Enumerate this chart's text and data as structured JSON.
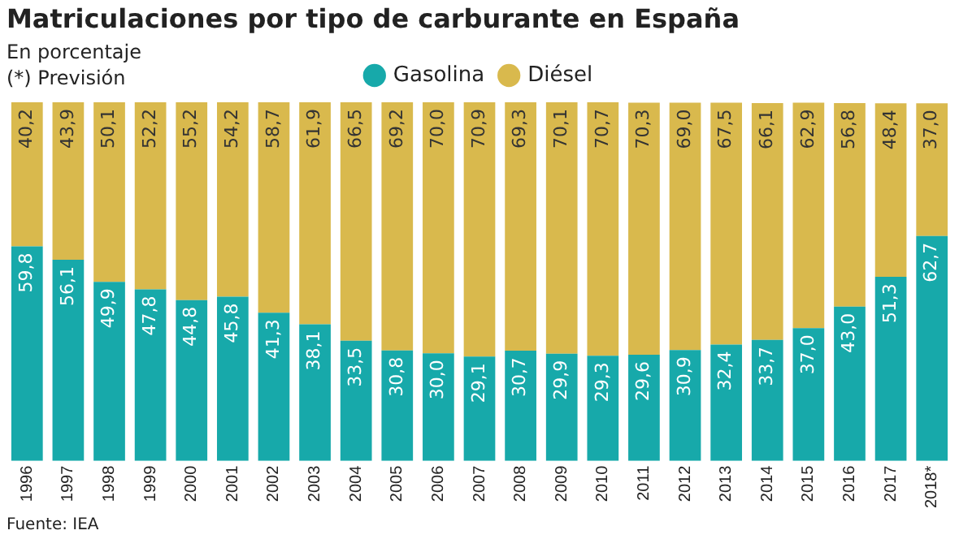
{
  "chart_data": {
    "type": "bar",
    "title": "Matriculaciones por tipo de carburante en España",
    "subtitle": "En porcentaje",
    "annotations": [
      "(*) Previsión",
      "Fuente: IEA"
    ],
    "categories": [
      "1996",
      "1997",
      "1998",
      "1999",
      "2000",
      "2001",
      "2002",
      "2003",
      "2004",
      "2005",
      "2006",
      "2007",
      "2008",
      "2009",
      "2010",
      "2011",
      "2012",
      "2013",
      "2014",
      "2015",
      "2016",
      "2017",
      "2018*"
    ],
    "stacked": true,
    "ylim": [
      0,
      100
    ],
    "tick_labels": "x",
    "grid": false,
    "legend": "top",
    "series": [
      {
        "name": "Gasolina",
        "color": "#17a9aa",
        "values": [
          59.8,
          56.1,
          49.9,
          47.8,
          44.8,
          45.8,
          41.3,
          38.1,
          33.5,
          30.8,
          30.0,
          29.1,
          30.7,
          29.9,
          29.3,
          29.6,
          30.9,
          32.4,
          33.7,
          37.0,
          43.0,
          51.3,
          62.7
        ],
        "value_labels": [
          "59,8",
          "56,1",
          "49,9",
          "47,8",
          "44,8",
          "45,8",
          "41,3",
          "38,1",
          "33,5",
          "30,8",
          "30,0",
          "29,1",
          "30,7",
          "29,9",
          "29,3",
          "29,6",
          "30,9",
          "32,4",
          "33,7",
          "37,0",
          "43,0",
          "51,3",
          "62,7"
        ]
      },
      {
        "name": "Diésel",
        "color": "#d9b94d",
        "values": [
          40.2,
          43.9,
          50.1,
          52.2,
          55.2,
          54.2,
          58.7,
          61.9,
          66.5,
          69.2,
          70.0,
          70.9,
          69.3,
          70.1,
          70.7,
          70.3,
          69.0,
          67.5,
          66.1,
          62.9,
          56.8,
          48.4,
          37.0
        ],
        "value_labels": [
          "40,2",
          "43,9",
          "50,1",
          "52,2",
          "55,2",
          "54,2",
          "58,7",
          "61,9",
          "66,5",
          "69,2",
          "70,0",
          "70,9",
          "69,3",
          "70,1",
          "70,7",
          "70,3",
          "69,0",
          "67,5",
          "66,1",
          "62,9",
          "56,8",
          "48,4",
          "37,0"
        ]
      }
    ]
  }
}
